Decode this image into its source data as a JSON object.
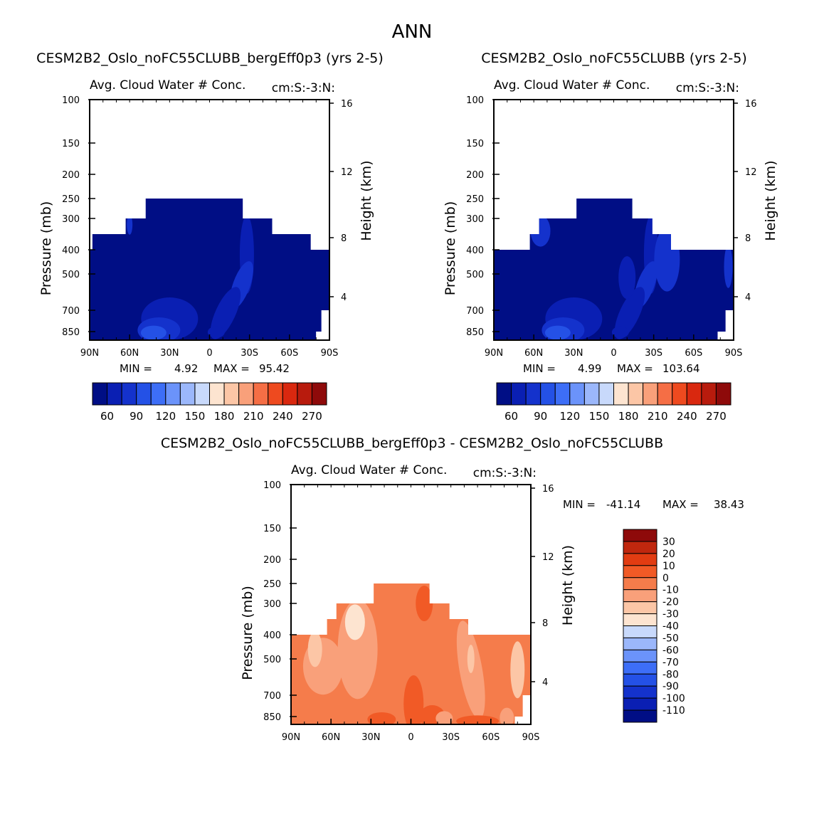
{
  "page_title": "ANN",
  "colors": {
    "blue_scale": [
      "#000e85",
      "#0a1fb3",
      "#1432cc",
      "#2451e6",
      "#3d6ef7",
      "#6b93fa",
      "#9bb7fb",
      "#c8d9fb",
      "#fde4d0",
      "#fcc6a6",
      "#f9a07a",
      "#f56e45",
      "#ee4a1f",
      "#d9280f",
      "#b81b0d",
      "#8e0a0a"
    ],
    "diff_scale": [
      "#000e85",
      "#0a1fb3",
      "#1432cc",
      "#2451e6",
      "#3d6ef7",
      "#6b93fa",
      "#9bb7fb",
      "#c8d9fb",
      "#fde4d0",
      "#fcc6a6",
      "#f9a07a",
      "#f57c4b",
      "#f15a26",
      "#e23c12",
      "#c0270e",
      "#8e0a0a"
    ]
  },
  "chart_data": [
    {
      "id": "panel1",
      "type": "heatmap",
      "title": "CESM2B2_Oslo_noFC55CLUBB_bergEff0p3 (yrs 2-5)",
      "subtitle_left": "Avg. Cloud Water # Conc.",
      "subtitle_right": "cm:S:-3:N:",
      "ylabel": "Pressure (mb)",
      "ylabel2": "Height (km)",
      "x_ticks": [
        "90N",
        "60N",
        "30N",
        "0",
        "30S",
        "60S",
        "90S"
      ],
      "y_ticks": [
        100,
        150,
        200,
        250,
        300,
        400,
        500,
        700,
        850
      ],
      "y2_ticks": [
        16,
        12,
        8,
        4
      ],
      "min_label": "MIN =",
      "min_value": "4.92",
      "max_label": "MAX =",
      "max_value": "95.42",
      "colorbar_ticks": [
        "60",
        "90",
        "120",
        "150",
        "180",
        "210",
        "240",
        "270"
      ]
    },
    {
      "id": "panel2",
      "type": "heatmap",
      "title": "CESM2B2_Oslo_noFC55CLUBB (yrs 2-5)",
      "subtitle_left": "Avg. Cloud Water # Conc.",
      "subtitle_right": "cm:S:-3:N:",
      "ylabel": "Pressure (mb)",
      "ylabel2": "Height (km)",
      "x_ticks": [
        "90N",
        "60N",
        "30N",
        "0",
        "30S",
        "60S",
        "90S"
      ],
      "y_ticks": [
        100,
        150,
        200,
        250,
        300,
        400,
        500,
        700,
        850
      ],
      "y2_ticks": [
        16,
        12,
        8,
        4
      ],
      "min_label": "MIN =",
      "min_value": "4.99",
      "max_label": "MAX =",
      "max_value": "103.64",
      "colorbar_ticks": [
        "60",
        "90",
        "120",
        "150",
        "180",
        "210",
        "240",
        "270"
      ]
    },
    {
      "id": "panel3",
      "type": "heatmap",
      "title": "CESM2B2_Oslo_noFC55CLUBB_bergEff0p3 - CESM2B2_Oslo_noFC55CLUBB",
      "subtitle_left": "Avg. Cloud Water # Conc.",
      "subtitle_right": "cm:S:-3:N:",
      "ylabel": "Pressure (mb)",
      "ylabel2": "Height (km)",
      "x_ticks": [
        "90N",
        "60N",
        "30N",
        "0",
        "30S",
        "60S",
        "90S"
      ],
      "y_ticks": [
        100,
        150,
        200,
        250,
        300,
        400,
        500,
        700,
        850
      ],
      "y2_ticks": [
        16,
        12,
        8,
        4
      ],
      "min_label": "MIN =",
      "min_value": "-41.14",
      "max_label": "MAX =",
      "max_value": "38.43",
      "colorbar_ticks": [
        "30",
        "20",
        "10",
        "0",
        "-10",
        "-20",
        "-30",
        "-40",
        "-50",
        "-60",
        "-70",
        "-80",
        "-90",
        "-100",
        "-110"
      ]
    }
  ]
}
